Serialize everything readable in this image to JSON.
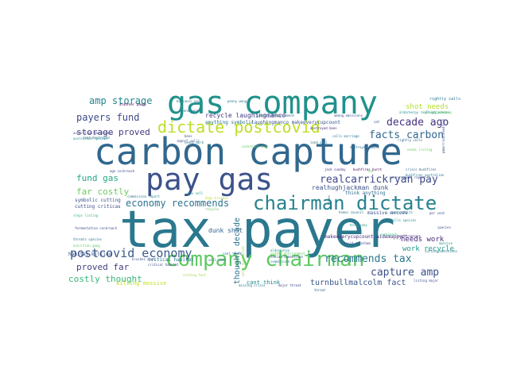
{
  "words": [
    {
      "text": "tax payer",
      "color": "#2a788e"
    },
    {
      "text": "carbon capture",
      "color": "#31688e"
    },
    {
      "text": "gas company",
      "color": "#21918c"
    },
    {
      "text": "pay gas",
      "color": "#3b528b"
    },
    {
      "text": "company chairman",
      "color": "#5ec962"
    },
    {
      "text": "chairman dictate",
      "color": "#26828e"
    },
    {
      "text": "dictate postcovid",
      "color": "#bddf26"
    },
    {
      "text": "postcovid economy",
      "color": "#38598c"
    },
    {
      "text": "recommends tax",
      "color": "#2a788e"
    },
    {
      "text": "realcarrickryan pay",
      "color": "#3e4989"
    },
    {
      "text": "decade ago",
      "color": "#46327e"
    },
    {
      "text": "facts carbon",
      "color": "#31688e"
    },
    {
      "text": "capture amp",
      "color": "#3b528b"
    },
    {
      "text": "economy recommends",
      "color": "#2c728e"
    },
    {
      "text": "amp storage",
      "color": "#25858e"
    },
    {
      "text": "payers fund",
      "color": "#3e4a89"
    },
    {
      "text": "storage proved",
      "color": "#453882"
    },
    {
      "text": "fund gas",
      "color": "#21a685"
    },
    {
      "text": "far costly",
      "color": "#6ccd5a"
    },
    {
      "text": "proved far",
      "color": "#433e85"
    },
    {
      "text": "costly thought",
      "color": "#35b779"
    },
    {
      "text": "thought decade",
      "color": "#2c728e"
    },
    {
      "text": "turnbullmalcolm fact",
      "color": "#39568c"
    },
    {
      "text": "shot needs",
      "color": "#b5de2b"
    },
    {
      "text": "needs work",
      "color": "#482878"
    },
    {
      "text": "work recycle",
      "color": "#1f9a8a"
    },
    {
      "text": "recycle laughingmanco",
      "color": "#443983"
    },
    {
      "text": "dunk shot",
      "color": "#33638d"
    },
    {
      "text": "realhughjackman dunk",
      "color": "#3b528b"
    },
    {
      "text": "laughingmanco makeeverycupcount",
      "color": "#39568c"
    },
    {
      "text": "makeeverycupcount aidemappyrt",
      "color": "#472d7b"
    },
    {
      "text": "anything symbolic",
      "color": "#2d708e"
    },
    {
      "text": "symbolic cutting",
      "color": "#3b528b"
    },
    {
      "text": "cutting criticas",
      "color": "#3e4a89"
    },
    {
      "text": "think anything",
      "color": "#31688e"
    },
    {
      "text": "massive access",
      "color": "#3b528b"
    },
    {
      "text": "criticas habitat",
      "color": "#2a788e"
    },
    {
      "text": "habitat killing",
      "color": "#3b528b"
    },
    {
      "text": "killing massive",
      "color": "#c2df23"
    },
    {
      "text": "cant think",
      "color": "#25848e"
    },
    {
      "text": "rightly calls",
      "color": "#2a788e"
    },
    {
      "text": "aldarker pmenk",
      "color": "#440154"
    },
    {
      "text": "penny wong",
      "color": "#2a788e"
    },
    {
      "text": "australian government",
      "color": "#3b528b"
    },
    {
      "text": "destroyed bees",
      "color": "#482878"
    },
    {
      "text": "land destroyed",
      "color": "#31688e"
    },
    {
      "text": "bees",
      "color": "#3b528b"
    },
    {
      "text": "cockroach dogs",
      "color": "#5ec962"
    },
    {
      "text": "needs work",
      "color": "#2a788e"
    },
    {
      "text": "gas sell",
      "color": "#21918c"
    },
    {
      "text": "commission report",
      "color": "#2a788e"
    },
    {
      "text": "brushes dogs",
      "color": "#3b528b"
    },
    {
      "text": "fermentation cockroach",
      "color": "#3e4a89"
    },
    {
      "text": "threats species",
      "color": "#2a788e"
    },
    {
      "text": "nutrition gang",
      "color": "#5ec962"
    },
    {
      "text": "steps listing",
      "color": "#35b779"
    },
    {
      "text": "australian species",
      "color": "#21918c"
    },
    {
      "text": "needs listing",
      "color": "#6ccd5a"
    },
    {
      "text": "coal capture",
      "color": "#46327e"
    },
    {
      "text": "cutting fact",
      "color": "#a0da39"
    },
    {
      "text": "sell land",
      "color": "#31688e"
    },
    {
      "text": "cant think",
      "color": "#2a788e"
    },
    {
      "text": "listing major",
      "color": "#3b528b"
    },
    {
      "text": "major threat",
      "color": "#3e4a89"
    },
    {
      "text": "missing crisis",
      "color": "#2a788e"
    },
    {
      "text": "kills species",
      "color": "#21918c"
    },
    {
      "text": "david cheatham",
      "color": "#3b528b"
    },
    {
      "text": "social commission",
      "color": "#3b528b"
    },
    {
      "text": "commission",
      "color": "#2a788e"
    },
    {
      "text": "rightly calls",
      "color": "#31688e"
    },
    {
      "text": "aldarkerpy realhughjackman",
      "color": "#21918c"
    },
    {
      "text": "among emissions",
      "color": "#3b528b"
    },
    {
      "text": "destroyed land",
      "color": "#31688e"
    },
    {
      "text": "power admits",
      "color": "#2a788e"
    },
    {
      "text": "environment report",
      "color": "#3b528b"
    },
    {
      "text": "per cent",
      "color": "#3e4a89"
    },
    {
      "text": "pmmorrisonnowdrive",
      "color": "#3b528b"
    },
    {
      "text": "crisis bushfires",
      "color": "#31688e"
    },
    {
      "text": "bushfires australian",
      "color": "#2a788e"
    },
    {
      "text": "jack sunday",
      "color": "#482878"
    },
    {
      "text": "bushfires burnt",
      "color": "#440154"
    },
    {
      "text": "critical habitat",
      "color": "#3e4a89"
    },
    {
      "text": "land sell",
      "color": "#2a788e"
    },
    {
      "text": "calls australian",
      "color": "#a0da39"
    },
    {
      "text": "aldarkerpy",
      "color": "#21918c"
    },
    {
      "text": "update environment",
      "color": "#5ec962"
    },
    {
      "text": "spend money",
      "color": "#2a788e"
    },
    {
      "text": "holdsunny",
      "color": "#21918c"
    },
    {
      "text": "dogs brushes",
      "color": "#b5de2b"
    },
    {
      "text": "cutting emissions",
      "color": "#2a788e"
    },
    {
      "text": "threat",
      "color": "#31688e"
    },
    {
      "text": "giving missing",
      "color": "#5ec962"
    },
    {
      "text": "import calls",
      "color": "#3b528b"
    },
    {
      "text": "business new",
      "color": "#2a788e"
    },
    {
      "text": "special announcement",
      "color": "#31688e"
    },
    {
      "text": "calls marriage",
      "color": "#2a788e"
    },
    {
      "text": "recycle",
      "color": "#5ec962"
    },
    {
      "text": "cockroach",
      "color": "#35b779"
    },
    {
      "text": "species",
      "color": "#3b528b"
    },
    {
      "text": "massive",
      "color": "#21918c"
    },
    {
      "text": "ago cockroach",
      "color": "#3e4a89"
    },
    {
      "text": "homes council",
      "color": "#2a788e"
    },
    {
      "text": "homes",
      "color": "#31688e"
    },
    {
      "text": "see",
      "color": "#6ccd5a"
    },
    {
      "text": "sat",
      "color": "#3b528b"
    }
  ]
}
